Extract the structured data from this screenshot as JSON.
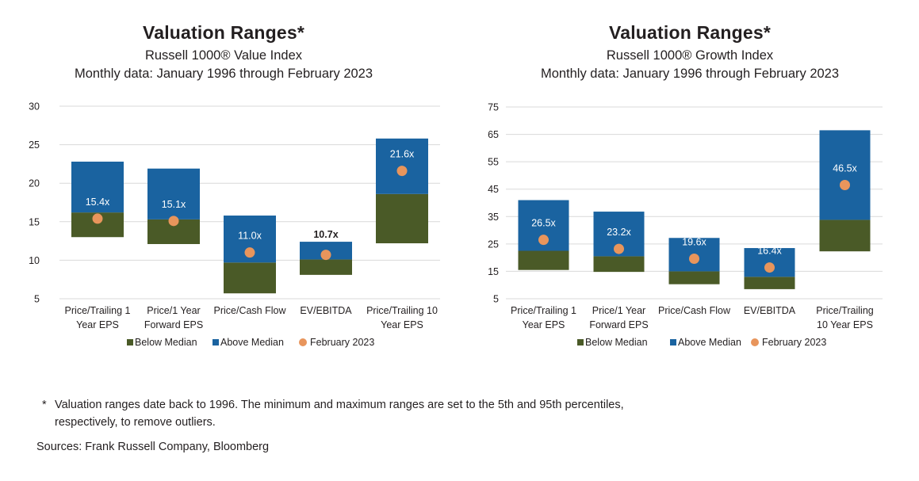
{
  "colors": {
    "below": "#4a5a27",
    "above": "#1a63a0",
    "point": "#e8955c",
    "grid": "#d9d9d9",
    "label_light": "#ffffff",
    "label_dark": "#231f20"
  },
  "legend": {
    "below": "Below Median",
    "above": "Above Median",
    "point": "February 2023"
  },
  "footnote": {
    "star": "*",
    "text": "Valuation ranges date back to 1996. The minimum and maximum ranges are set to the 5th and 95th percentiles, respectively, to remove outliers."
  },
  "sources": "Sources: Frank Russell Company, Bloomberg",
  "chart_data": [
    {
      "type": "bar",
      "title": "Valuation Ranges*",
      "subtitle": "Russell 1000® Value Index",
      "subtitle2": "Monthly data: January 1996 through February 2023",
      "ylim": [
        5,
        30
      ],
      "yticks": [
        5,
        10,
        15,
        20,
        25,
        30
      ],
      "grid": true,
      "legend_position": "bottom",
      "categories": [
        [
          "Price/Trailing 1",
          "Year EPS"
        ],
        [
          "Price/1 Year",
          "Forward EPS"
        ],
        [
          "Price/Cash Flow"
        ],
        [
          "EV/EBITDA"
        ],
        [
          "Price/Trailing 10",
          "Year EPS"
        ]
      ],
      "min": [
        13.0,
        12.1,
        5.7,
        8.1,
        12.2
      ],
      "median": [
        16.2,
        15.3,
        9.7,
        10.1,
        18.6
      ],
      "max": [
        22.8,
        21.9,
        15.8,
        12.4,
        25.8
      ],
      "february_2023": [
        15.4,
        15.1,
        11.0,
        10.7,
        21.6
      ],
      "labels": [
        "15.4x",
        "15.1x",
        "11.0x",
        "10.7x",
        "21.6x"
      ],
      "label_above_bar": [
        false,
        false,
        false,
        true,
        false
      ]
    },
    {
      "type": "bar",
      "title": "Valuation Ranges*",
      "subtitle": "Russell 1000® Growth Index",
      "subtitle2": "Monthly data: January 1996 through February 2023",
      "ylim": [
        5,
        75
      ],
      "yticks": [
        5,
        15,
        25,
        35,
        45,
        55,
        65,
        75
      ],
      "grid": true,
      "legend_position": "bottom",
      "categories": [
        [
          "Price/Trailing 1",
          "Year EPS"
        ],
        [
          "Price/1 Year",
          "Forward EPS"
        ],
        [
          "Price/Cash Flow"
        ],
        [
          "EV/EBITDA"
        ],
        [
          "Price/Trailing",
          "10 Year EPS"
        ]
      ],
      "min": [
        15.5,
        14.8,
        10.3,
        8.5,
        22.3
      ],
      "median": [
        22.5,
        20.5,
        15.0,
        13.0,
        33.8
      ],
      "max": [
        41.0,
        36.8,
        27.2,
        23.5,
        66.5
      ],
      "february_2023": [
        26.5,
        23.2,
        19.6,
        16.4,
        46.5
      ],
      "labels": [
        "26.5x",
        "23.2x",
        "19.6x",
        "16.4x",
        "46.5x"
      ],
      "label_above_bar": [
        false,
        false,
        false,
        false,
        false
      ]
    }
  ]
}
